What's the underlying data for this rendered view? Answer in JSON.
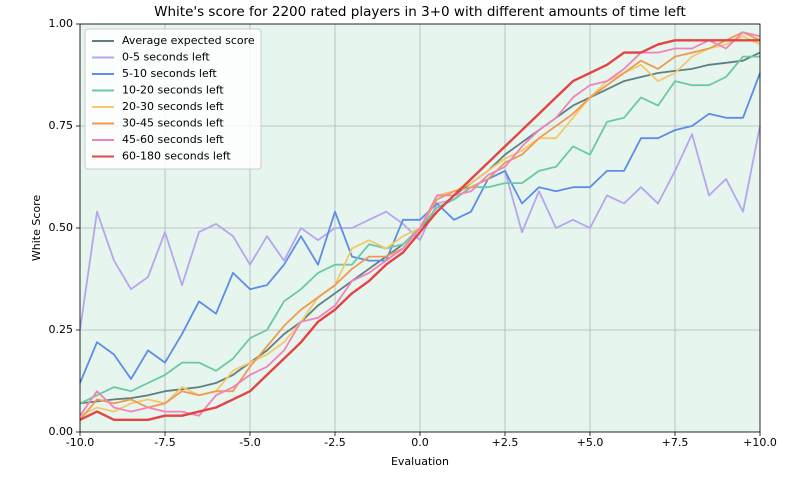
{
  "chart_data": {
    "type": "line",
    "title": "White's score for 2200 rated players in 3+0 with different amounts of time left",
    "xlabel": "Evaluation",
    "ylabel": "White Score",
    "background": "#e6f5ee",
    "grid": true,
    "legend": "upper left",
    "xlim": [
      -10,
      10
    ],
    "ylim": [
      0,
      1
    ],
    "xticks": [
      {
        "value": -10,
        "label": "-10.0"
      },
      {
        "value": -7.5,
        "label": "-7.5"
      },
      {
        "value": -5,
        "label": "-5.0"
      },
      {
        "value": -2.5,
        "label": "-2.5"
      },
      {
        "value": 0,
        "label": "0.0"
      },
      {
        "value": 2.5,
        "label": "+2.5"
      },
      {
        "value": 5,
        "label": "+5.0"
      },
      {
        "value": 7.5,
        "label": "+7.5"
      },
      {
        "value": 10,
        "label": "+10.0"
      }
    ],
    "yticks": [
      {
        "value": 0,
        "label": "0.00"
      },
      {
        "value": 0.25,
        "label": "0.25"
      },
      {
        "value": 0.5,
        "label": "0.50"
      },
      {
        "value": 0.75,
        "label": "0.75"
      },
      {
        "value": 1,
        "label": "1.00"
      }
    ],
    "x": [
      -10,
      -9.5,
      -9,
      -8.5,
      -8,
      -7.5,
      -7,
      -6.5,
      -6,
      -5.5,
      -5,
      -4.5,
      -4,
      -3.5,
      -3,
      -2.5,
      -2,
      -1.5,
      -1,
      -0.5,
      0,
      0.5,
      1,
      1.5,
      2,
      2.5,
      3,
      3.5,
      4,
      4.5,
      5,
      5.5,
      6,
      6.5,
      7,
      7.5,
      8,
      8.5,
      9,
      9.5,
      10
    ],
    "series": [
      {
        "name": "Average expected score",
        "color": "#5f7f80",
        "values": [
          0.07,
          0.075,
          0.08,
          0.083,
          0.09,
          0.1,
          0.105,
          0.11,
          0.12,
          0.14,
          0.17,
          0.2,
          0.24,
          0.27,
          0.31,
          0.34,
          0.37,
          0.4,
          0.43,
          0.46,
          0.5,
          0.54,
          0.58,
          0.61,
          0.64,
          0.68,
          0.71,
          0.74,
          0.77,
          0.8,
          0.82,
          0.84,
          0.86,
          0.87,
          0.88,
          0.885,
          0.89,
          0.9,
          0.905,
          0.91,
          0.93
        ]
      },
      {
        "name": "0-5 seconds left",
        "color": "#b8a4f0",
        "values": [
          0.25,
          0.54,
          0.42,
          0.35,
          0.38,
          0.49,
          0.36,
          0.49,
          0.51,
          0.48,
          0.41,
          0.48,
          0.42,
          0.5,
          0.47,
          0.5,
          0.5,
          0.52,
          0.54,
          0.51,
          0.47,
          0.56,
          0.57,
          0.6,
          0.62,
          0.64,
          0.49,
          0.59,
          0.5,
          0.52,
          0.5,
          0.58,
          0.56,
          0.6,
          0.56,
          0.64,
          0.73,
          0.58,
          0.62,
          0.54,
          0.75
        ]
      },
      {
        "name": "5-10 seconds left",
        "color": "#5b8ee6",
        "values": [
          0.12,
          0.22,
          0.19,
          0.13,
          0.2,
          0.17,
          0.24,
          0.32,
          0.29,
          0.39,
          0.35,
          0.36,
          0.41,
          0.48,
          0.41,
          0.54,
          0.43,
          0.42,
          0.42,
          0.52,
          0.52,
          0.56,
          0.52,
          0.54,
          0.62,
          0.64,
          0.56,
          0.6,
          0.59,
          0.6,
          0.6,
          0.64,
          0.64,
          0.72,
          0.72,
          0.74,
          0.75,
          0.78,
          0.77,
          0.77,
          0.88
        ]
      },
      {
        "name": "10-20 seconds left",
        "color": "#6cc9a3",
        "values": [
          0.07,
          0.09,
          0.11,
          0.1,
          0.12,
          0.14,
          0.17,
          0.17,
          0.15,
          0.18,
          0.23,
          0.25,
          0.32,
          0.35,
          0.39,
          0.41,
          0.41,
          0.46,
          0.45,
          0.46,
          0.5,
          0.55,
          0.57,
          0.6,
          0.6,
          0.61,
          0.61,
          0.64,
          0.65,
          0.7,
          0.68,
          0.76,
          0.77,
          0.82,
          0.8,
          0.86,
          0.85,
          0.85,
          0.87,
          0.92,
          0.92
        ]
      },
      {
        "name": "20-30 seconds left",
        "color": "#f5c86c",
        "values": [
          0.04,
          0.06,
          0.05,
          0.07,
          0.08,
          0.07,
          0.11,
          0.09,
          0.1,
          0.15,
          0.17,
          0.19,
          0.22,
          0.27,
          0.33,
          0.36,
          0.45,
          0.47,
          0.45,
          0.48,
          0.5,
          0.58,
          0.59,
          0.61,
          0.64,
          0.67,
          0.69,
          0.72,
          0.72,
          0.77,
          0.82,
          0.86,
          0.88,
          0.9,
          0.86,
          0.88,
          0.92,
          0.94,
          0.95,
          0.97,
          0.95
        ]
      },
      {
        "name": "30-45 seconds left",
        "color": "#f09a50",
        "values": [
          0.03,
          0.08,
          0.07,
          0.08,
          0.06,
          0.07,
          0.1,
          0.09,
          0.1,
          0.1,
          0.16,
          0.21,
          0.26,
          0.3,
          0.33,
          0.36,
          0.4,
          0.43,
          0.43,
          0.45,
          0.5,
          0.57,
          0.59,
          0.6,
          0.62,
          0.66,
          0.68,
          0.72,
          0.75,
          0.78,
          0.82,
          0.85,
          0.88,
          0.91,
          0.89,
          0.92,
          0.93,
          0.94,
          0.96,
          0.98,
          0.96
        ]
      },
      {
        "name": "45-60 seconds left",
        "color": "#f283ba",
        "values": [
          0.04,
          0.1,
          0.06,
          0.05,
          0.06,
          0.05,
          0.05,
          0.04,
          0.09,
          0.11,
          0.14,
          0.16,
          0.2,
          0.27,
          0.28,
          0.31,
          0.37,
          0.39,
          0.42,
          0.45,
          0.5,
          0.58,
          0.58,
          0.59,
          0.63,
          0.65,
          0.7,
          0.74,
          0.77,
          0.82,
          0.85,
          0.86,
          0.89,
          0.93,
          0.93,
          0.94,
          0.94,
          0.96,
          0.94,
          0.98,
          0.97
        ]
      },
      {
        "name": "60-180 seconds left",
        "color": "#e34444",
        "values": [
          0.03,
          0.05,
          0.03,
          0.03,
          0.03,
          0.04,
          0.04,
          0.05,
          0.06,
          0.08,
          0.1,
          0.14,
          0.18,
          0.22,
          0.27,
          0.3,
          0.34,
          0.37,
          0.41,
          0.44,
          0.49,
          0.54,
          0.58,
          0.62,
          0.66,
          0.7,
          0.74,
          0.78,
          0.82,
          0.86,
          0.88,
          0.9,
          0.93,
          0.93,
          0.95,
          0.96,
          0.96,
          0.96,
          0.96,
          0.96,
          0.96
        ]
      }
    ]
  }
}
